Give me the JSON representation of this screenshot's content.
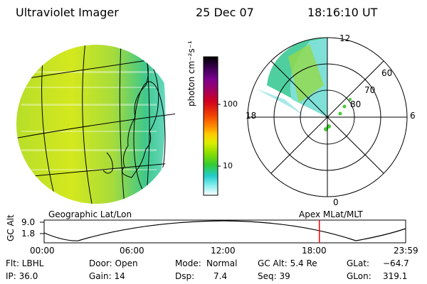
{
  "header": {
    "title": "Ultraviolet Imager",
    "date": "25 Dec 07",
    "time": "18:16:10 UT"
  },
  "left_globe": {
    "label": "Geographic Lat/Lon"
  },
  "colorbar": {
    "unit_label": "photon cm⁻²s⁻¹",
    "ticks": [
      "100",
      "10"
    ],
    "colors": [
      "#000000",
      "#3a0050",
      "#7a0090",
      "#a00060",
      "#d00020",
      "#f04000",
      "#ff8800",
      "#ffcc00",
      "#ddee00",
      "#88dd00",
      "#33cc33",
      "#22cccc",
      "#88eeee",
      "#ffffff"
    ]
  },
  "polar_plot": {
    "label": "Apex MLat/MLT",
    "mlt_labels": {
      "top": "12",
      "left": "18",
      "right": "6",
      "bottom": "0"
    },
    "lat_labels": [
      "60",
      "70",
      "80"
    ]
  },
  "altitude_plot": {
    "axis_label": "GC Alt",
    "y_ticks": [
      "9.0",
      "1.8"
    ],
    "x_ticks": [
      "00:00",
      "06:00",
      "12:00",
      "18:00",
      "23:59"
    ],
    "current_time_fraction": 0.7613,
    "marker_color": "#ff0000"
  },
  "footer": {
    "filter": "Flt: LBHL",
    "door": "Door: Open",
    "mode_label": "Mode:",
    "mode_value": "Normal",
    "gc_alt": "GC Alt: 5.4 Re",
    "glat_label": "GLat:",
    "glat_value": "−64.7",
    "ip": "IP: 36.0",
    "gain": "Gain: 14",
    "dsp_label": "Dsp:",
    "dsp_value": "7.4",
    "seq": "Seq: 39",
    "glon_label": "GLon:",
    "glon_value": "319.1"
  }
}
